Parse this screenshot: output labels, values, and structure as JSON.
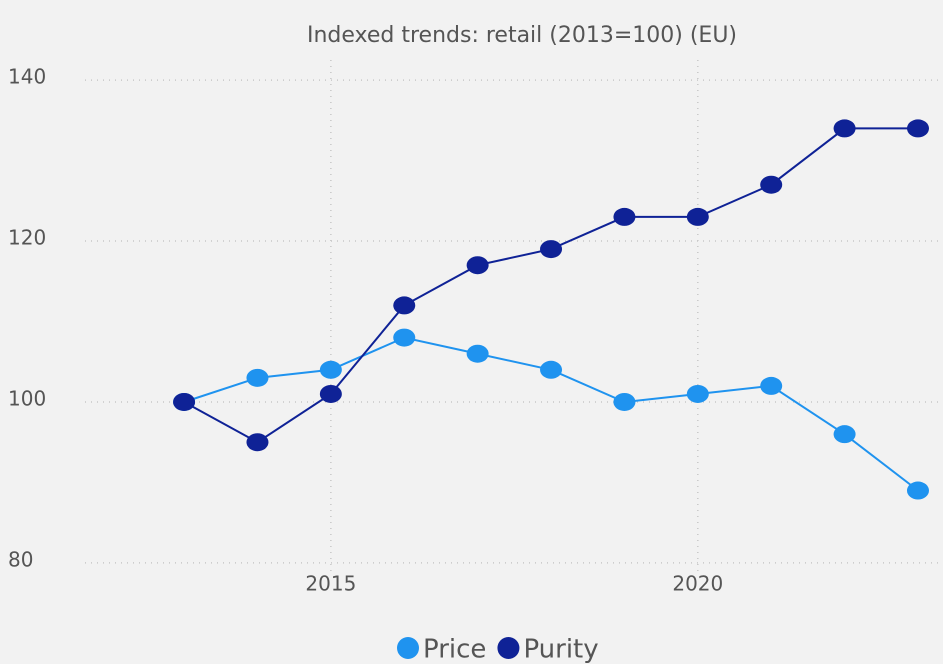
{
  "chart_data": {
    "type": "line",
    "title": "Indexed trends: retail (2013=100) (EU)",
    "x": [
      2013,
      2014,
      2015,
      2016,
      2017,
      2018,
      2019,
      2020,
      2021,
      2022,
      2023
    ],
    "series": [
      {
        "name": "Price",
        "color": "#1f93ef",
        "values": [
          100,
          103,
          104,
          108,
          106,
          104,
          100,
          101,
          102,
          96,
          89
        ]
      },
      {
        "name": "Purity",
        "color": "#0f2296",
        "values": [
          100,
          95,
          101,
          112,
          117,
          119,
          123,
          123,
          127,
          134,
          134
        ]
      }
    ],
    "xlim": [
      2011.65,
      2023.3
    ],
    "xticks": [
      2015,
      2020
    ],
    "ylim": [
      78.5,
      142.5
    ],
    "yticks": [
      80,
      100,
      120,
      140
    ],
    "grid": true,
    "legend": "bottom"
  }
}
